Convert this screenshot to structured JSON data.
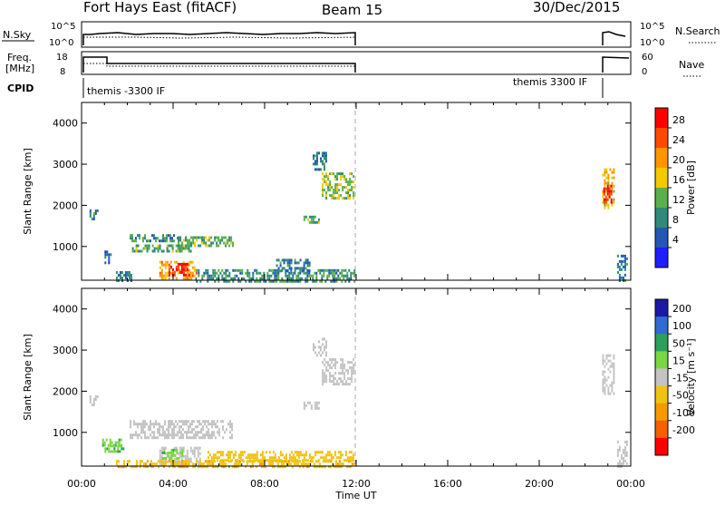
{
  "header": {
    "station": "Fort Hays East (fitACF)",
    "beam": "Beam 15",
    "date": "30/Dec/2015"
  },
  "strip_panels": {
    "nsky_label": "N.Sky",
    "nsky_ticks": [
      "10^5",
      "10^0"
    ],
    "nsearch_label": "N.Search",
    "nsearch_ticks": [
      "10^5",
      "10^0"
    ],
    "freq_label_1": "Freq.",
    "freq_label_2": "[MHz]",
    "freq_ticks": [
      "18",
      "8"
    ],
    "nave_label": "Nave",
    "nave_ticks": [
      "60",
      "0"
    ],
    "cpid_label": "CPID",
    "cpid_left": "themis -3300 IF",
    "cpid_right": "themis 3300 IF"
  },
  "power_panel": {
    "ylabel": "Slant Range [km]",
    "colorbar_label": "Power [dB]",
    "colorbar_ticks": [
      "28",
      "24",
      "20",
      "16",
      "12",
      "8",
      "4"
    ],
    "colorbar_colors": [
      "#ff0000",
      "#ff4a00",
      "#ff9600",
      "#f5c800",
      "#5ab04a",
      "#2f8a7a",
      "#2357b4",
      "#1e1eff"
    ]
  },
  "velocity_panel": {
    "ylabel": "Slant Range [km]",
    "colorbar_label": "Velocity [m s⁻¹]",
    "colorbar_ticks": [
      "200",
      "100",
      "50",
      "15",
      "-15",
      "-50",
      "-100",
      "-200"
    ],
    "colorbar_colors": [
      "#1a1aa6",
      "#2f6bd0",
      "#2aa05a",
      "#7ad642",
      "#c4c4c4",
      "#f2c210",
      "#f59a00",
      "#f56000",
      "#ff0000"
    ]
  },
  "x_axis": {
    "label": "Time UT",
    "ticks": [
      "00:00",
      "04:00",
      "08:00",
      "12:00",
      "16:00",
      "20:00",
      "00:00"
    ]
  },
  "chart_data": {
    "type": "heatmap",
    "title": "Fort Hays East (fitACF)",
    "xlabel": "Time UT",
    "ylabel": "Slant Range [km]",
    "xlim": [
      0,
      24
    ],
    "ylim": [
      180,
      4500
    ],
    "yticks": [
      1000,
      2000,
      3000,
      4000
    ],
    "grid": false,
    "data_gap_hours": [
      12.0,
      22.7
    ],
    "series": [
      {
        "name": "Power [dB]",
        "scale": [
          0,
          30
        ],
        "regions": [
          {
            "t": [
              0.35,
              0.7
            ],
            "r": [
              1650,
              1900
            ],
            "v": 8
          },
          {
            "t": [
              1.0,
              1.3
            ],
            "r": [
              600,
              900
            ],
            "v": 6
          },
          {
            "t": [
              1.5,
              2.2
            ],
            "r": [
              200,
              400
            ],
            "v": 8
          },
          {
            "t": [
              2.1,
              4.2
            ],
            "r": [
              1150,
              1300
            ],
            "v": 10
          },
          {
            "t": [
              2.2,
              4.8
            ],
            "r": [
              900,
              1050
            ],
            "v": 12
          },
          {
            "t": [
              4.2,
              6.6
            ],
            "r": [
              1050,
              1250
            ],
            "v": 12
          },
          {
            "t": [
              3.4,
              5.0
            ],
            "r": [
              250,
              650
            ],
            "v": 20
          },
          {
            "t": [
              3.8,
              4.7
            ],
            "r": [
              300,
              600
            ],
            "v": 28
          },
          {
            "t": [
              5.0,
              11.9
            ],
            "r": [
              180,
              450
            ],
            "v": 10
          },
          {
            "t": [
              8.5,
              10.0
            ],
            "r": [
              400,
              700
            ],
            "v": 8
          },
          {
            "t": [
              9.7,
              10.4
            ],
            "r": [
              1600,
              1750
            ],
            "v": 12
          },
          {
            "t": [
              10.1,
              10.7
            ],
            "r": [
              2900,
              3300
            ],
            "v": 8
          },
          {
            "t": [
              10.5,
              11.9
            ],
            "r": [
              2200,
              2800
            ],
            "v": 14
          },
          {
            "t": [
              22.75,
              23.3
            ],
            "r": [
              1950,
              2900
            ],
            "v": 18
          },
          {
            "t": [
              22.8,
              23.15
            ],
            "r": [
              2100,
              2500
            ],
            "v": 26
          },
          {
            "t": [
              23.4,
              23.8
            ],
            "r": [
              180,
              800
            ],
            "v": 8
          }
        ]
      },
      {
        "name": "Velocity [m s⁻¹]",
        "scale": [
          -250,
          250
        ],
        "regions": [
          {
            "t": [
              0.35,
              0.7
            ],
            "r": [
              1650,
              1900
            ],
            "v": 0
          },
          {
            "t": [
              0.9,
              1.7
            ],
            "r": [
              700,
              850
            ],
            "v": 40
          },
          {
            "t": [
              1.0,
              1.8
            ],
            "r": [
              550,
              700
            ],
            "v": 40
          },
          {
            "t": [
              2.1,
              6.6
            ],
            "r": [
              900,
              1300
            ],
            "v": 0
          },
          {
            "t": [
              3.4,
              5.2
            ],
            "r": [
              250,
              650
            ],
            "v": 0
          },
          {
            "t": [
              3.5,
              4.4
            ],
            "r": [
              400,
              600
            ],
            "v": 40
          },
          {
            "t": [
              1.5,
              11.9
            ],
            "r": [
              180,
              330
            ],
            "v": -40
          },
          {
            "t": [
              5.5,
              11.9
            ],
            "r": [
              330,
              550
            ],
            "v": -30
          },
          {
            "t": [
              9.7,
              10.4
            ],
            "r": [
              1600,
              1750
            ],
            "v": 0
          },
          {
            "t": [
              10.1,
              10.7
            ],
            "r": [
              2900,
              3300
            ],
            "v": 0
          },
          {
            "t": [
              10.5,
              11.9
            ],
            "r": [
              2200,
              2800
            ],
            "v": 0
          },
          {
            "t": [
              22.75,
              23.3
            ],
            "r": [
              1950,
              2900
            ],
            "v": 0
          },
          {
            "t": [
              23.4,
              23.8
            ],
            "r": [
              180,
              800
            ],
            "v": 0
          }
        ]
      }
    ]
  }
}
